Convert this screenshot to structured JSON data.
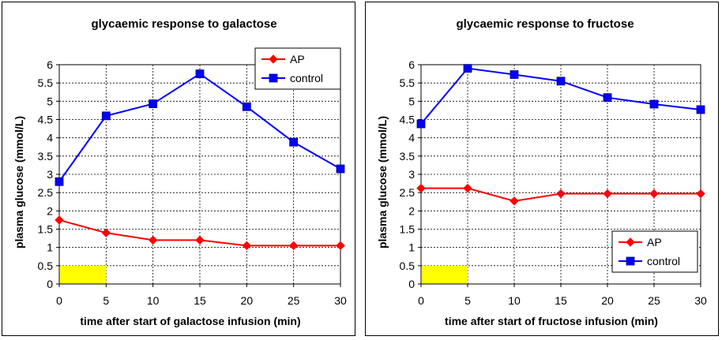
{
  "chart_data": [
    {
      "type": "line",
      "title": "glycaemic response to galactose",
      "xlabel": "time after start of galactose infusion (min)",
      "ylabel": "plasma glucose (mmol/L)",
      "x": [
        0,
        5,
        10,
        15,
        20,
        25,
        30
      ],
      "xticks": [
        "0",
        "5",
        "10",
        "15",
        "20",
        "25",
        "30"
      ],
      "yticks": [
        "0",
        "0.5",
        "1",
        "1.5",
        "2",
        "2.5",
        "3",
        "3.5",
        "4",
        "4.5",
        "5",
        "5.5",
        "6"
      ],
      "xlim": [
        0,
        30
      ],
      "ylim": [
        0,
        6
      ],
      "grid": true,
      "legend_position": "top-right",
      "infusion_bar": {
        "x": [
          0,
          5
        ],
        "y": [
          0,
          0.5
        ],
        "color": "#ffff00"
      },
      "series": [
        {
          "name": "AP",
          "color": "#ff0000",
          "marker": "diamond",
          "values": [
            1.75,
            1.4,
            1.2,
            1.2,
            1.05,
            1.05,
            1.05
          ]
        },
        {
          "name": "control",
          "color": "#0000ff",
          "marker": "square",
          "values": [
            2.8,
            4.6,
            4.93,
            5.75,
            4.85,
            3.88,
            3.15
          ]
        }
      ]
    },
    {
      "type": "line",
      "title": "glycaemic response to fructose",
      "xlabel": "time after start of fructose infusion (min)",
      "ylabel": "plasma glucose (mmol/L)",
      "x": [
        0,
        5,
        10,
        15,
        20,
        25,
        30
      ],
      "xticks": [
        "0",
        "5",
        "10",
        "15",
        "20",
        "25",
        "30"
      ],
      "yticks": [
        "0",
        "0.5",
        "1",
        "1.5",
        "2",
        "2.5",
        "3",
        "3.5",
        "4",
        "4.5",
        "5",
        "5.5",
        "6"
      ],
      "xlim": [
        0,
        30
      ],
      "ylim": [
        0,
        6
      ],
      "grid": true,
      "legend_position": "bottom-right",
      "infusion_bar": {
        "x": [
          0,
          5
        ],
        "y": [
          0,
          0.5
        ],
        "color": "#ffff00"
      },
      "series": [
        {
          "name": "AP",
          "color": "#ff0000",
          "marker": "diamond",
          "values": [
            2.62,
            2.62,
            2.27,
            2.47,
            2.47,
            2.47,
            2.47
          ]
        },
        {
          "name": "control",
          "color": "#0000ff",
          "marker": "square",
          "values": [
            4.38,
            5.9,
            5.73,
            5.55,
            5.1,
            4.92,
            4.77
          ]
        }
      ]
    }
  ]
}
